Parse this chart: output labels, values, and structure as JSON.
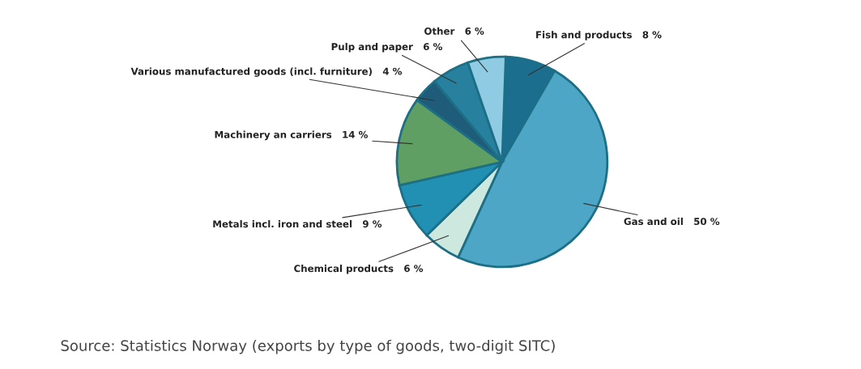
{
  "chart_data": {
    "type": "pie",
    "categories": [
      "Fish and products",
      "Gas and oil",
      "Chemical products",
      "Metals incl. iron and steel",
      "Machinery an carriers",
      "Various manufactured goods (incl. furniture)",
      "Pulp and paper",
      "Other"
    ],
    "values": [
      8,
      50,
      6,
      9,
      14,
      4,
      6,
      6
    ],
    "value_labels": [
      "8 %",
      "50 %",
      "6 %",
      "9 %",
      "14 %",
      "4 %",
      "6 %",
      "6 %"
    ],
    "colors": [
      "#1b6e8e",
      "#4ea6c6",
      "#cde9df",
      "#2290b2",
      "#5f9f63",
      "#1f5c7a",
      "#26809e",
      "#8fcbe2"
    ],
    "annotations": [
      "Source: Statistics Norway (exports by type of goods, two-digit SITC)"
    ]
  }
}
